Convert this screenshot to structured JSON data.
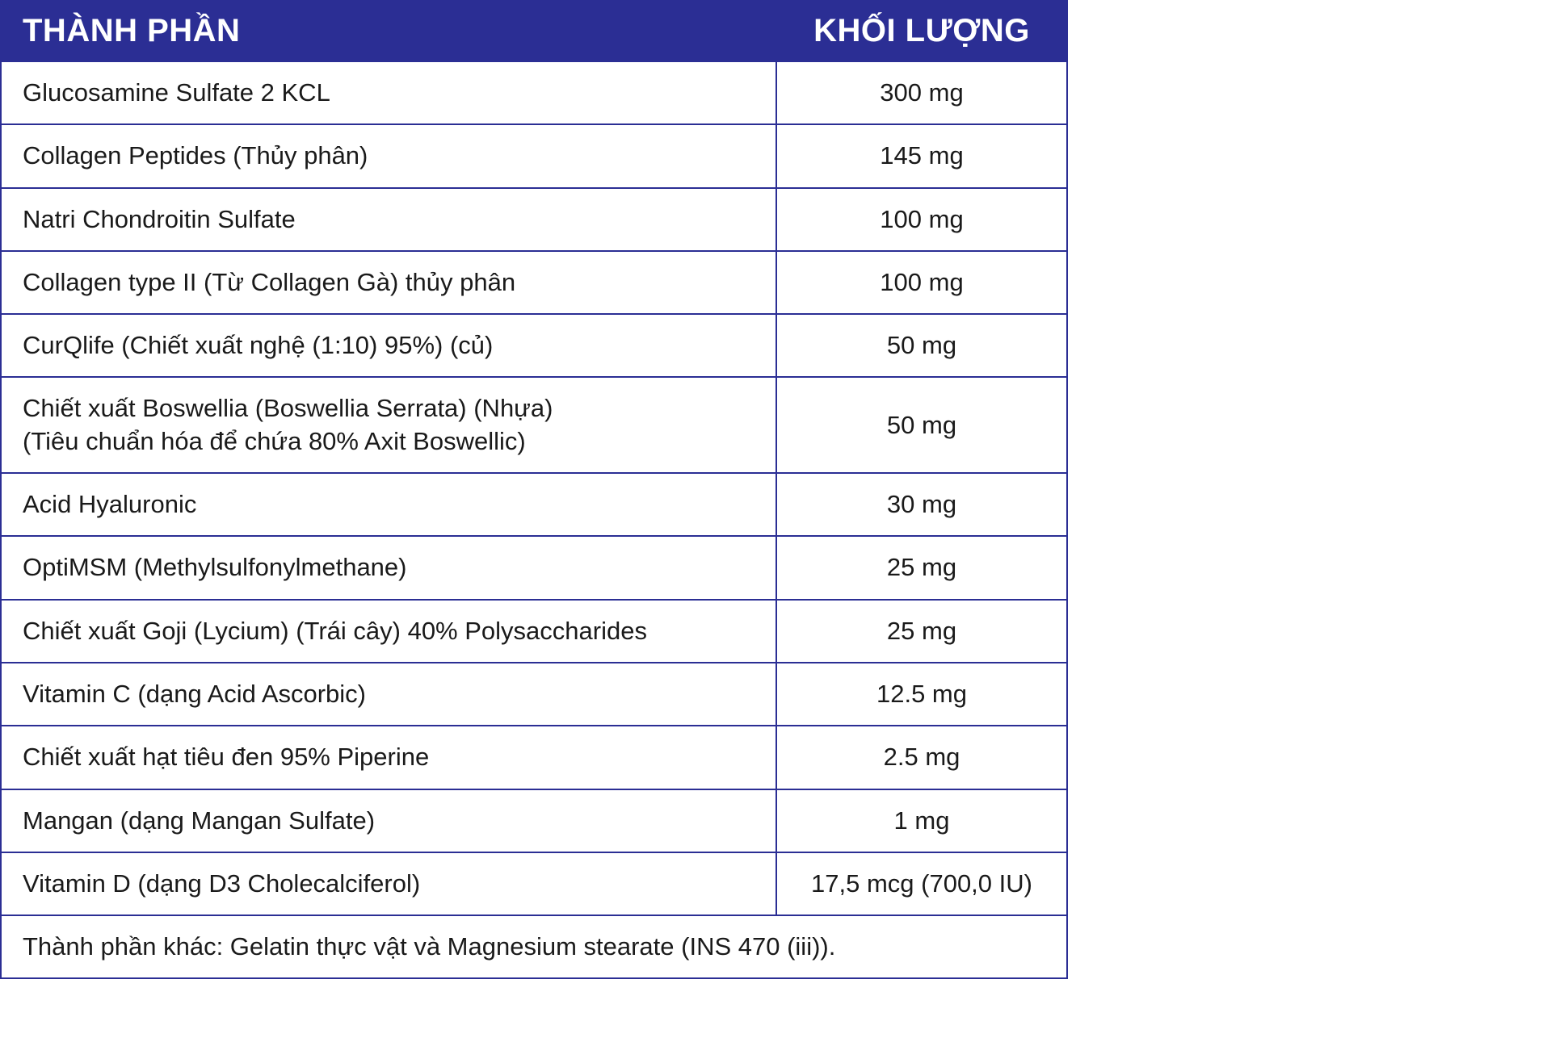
{
  "colors": {
    "header_bg": "#2b2e94",
    "header_fg": "#ffffff",
    "border": "#2b2e94",
    "body_bg": "#ffffff",
    "body_fg": "#1a1a1a"
  },
  "table": {
    "header_ingredient": "THÀNH PHẦN",
    "header_amount": "KHỐI LƯỢNG",
    "rows": [
      {
        "ingredient": "Glucosamine Sulfate 2 KCL",
        "amount": "300 mg"
      },
      {
        "ingredient": "Collagen Peptides (Thủy phân)",
        "amount": "145 mg"
      },
      {
        "ingredient": "Natri Chondroitin Sulfate",
        "amount": "100 mg"
      },
      {
        "ingredient": "Collagen type II (Từ Collagen Gà) thủy phân",
        "amount": "100 mg"
      },
      {
        "ingredient": "CurQlife (Chiết xuất nghệ (1:10) 95%) (củ)",
        "amount": "50 mg"
      },
      {
        "ingredient_line1": "Chiết xuất Boswellia (Boswellia Serrata) (Nhựa)",
        "ingredient_line2": "(Tiêu chuẩn hóa để chứa 80% Axit Boswellic)",
        "amount": "50 mg"
      },
      {
        "ingredient": "Acid Hyaluronic",
        "amount": "30 mg"
      },
      {
        "ingredient": "OptiMSM (Methylsulfonylmethane)",
        "amount": "25 mg"
      },
      {
        "ingredient": "Chiết xuất Goji (Lycium) (Trái cây) 40% Polysaccharides",
        "amount": "25 mg"
      },
      {
        "ingredient": "Vitamin C (dạng Acid Ascorbic)",
        "amount": "12.5 mg"
      },
      {
        "ingredient": "Chiết xuất hạt tiêu đen 95% Piperine",
        "amount": "2.5 mg"
      },
      {
        "ingredient": "Mangan (dạng Mangan Sulfate)",
        "amount": "1 mg"
      },
      {
        "ingredient": "Vitamin D (dạng D3 Cholecalciferol)",
        "amount": "17,5 mcg (700,0 IU)"
      }
    ],
    "footer": "Thành phần khác: Gelatin thực vật và Magnesium stearate (INS 470 (iii))."
  }
}
